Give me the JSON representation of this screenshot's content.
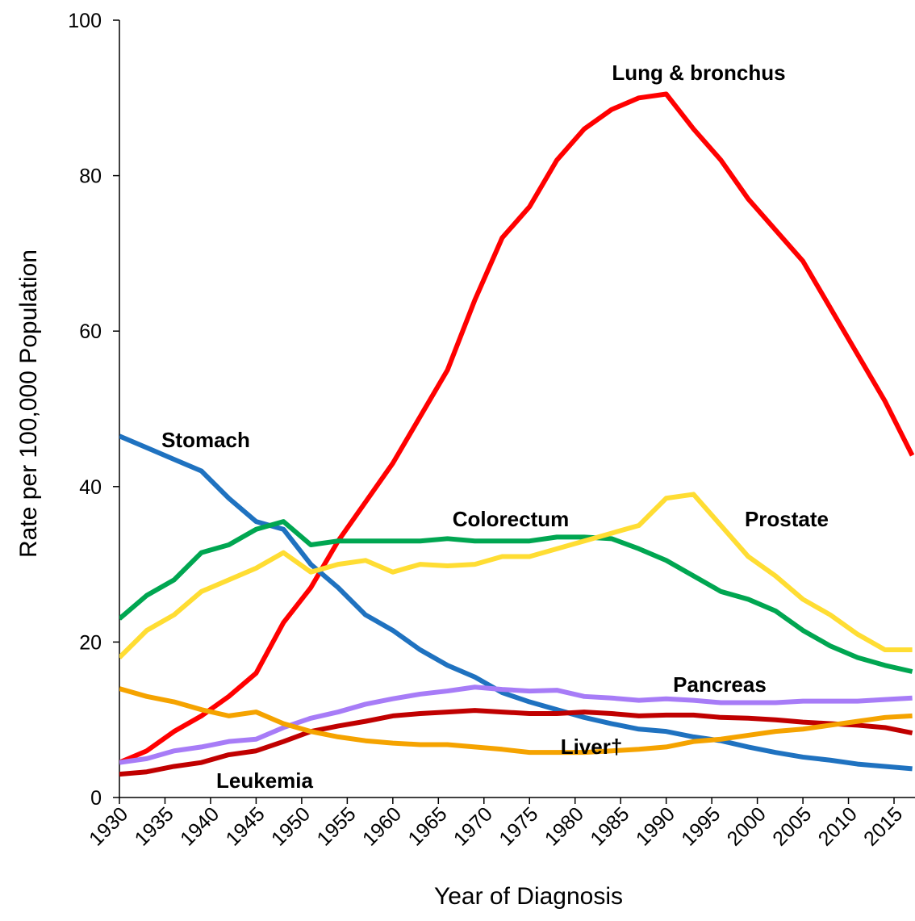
{
  "chart_data": {
    "type": "line",
    "xlabel": "Year of Diagnosis",
    "ylabel": "Rate per 100,000 Population",
    "x": [
      1930,
      1933,
      1936,
      1939,
      1942,
      1945,
      1948,
      1951,
      1954,
      1957,
      1960,
      1963,
      1966,
      1969,
      1972,
      1975,
      1978,
      1981,
      1984,
      1987,
      1990,
      1993,
      1996,
      1999,
      2002,
      2005,
      2008,
      2011,
      2014,
      2017
    ],
    "xlim": [
      1930,
      2017.3
    ],
    "xticks": [
      1930,
      1935,
      1940,
      1945,
      1950,
      1955,
      1960,
      1965,
      1970,
      1975,
      1980,
      1985,
      1990,
      1995,
      2000,
      2005,
      2010,
      2015
    ],
    "ylim": [
      0,
      100
    ],
    "yticks": [
      0,
      20,
      40,
      60,
      80,
      100
    ],
    "series": [
      {
        "name": "Lung & bronchus",
        "color": "#ff0000",
        "values": [
          4.5,
          6,
          8.5,
          10.5,
          13,
          16,
          22.5,
          27,
          33,
          38,
          43,
          49,
          55,
          64,
          72,
          76,
          82,
          86,
          88.5,
          90,
          90.5,
          86,
          82,
          77,
          73,
          69,
          63,
          57,
          51,
          44
        ]
      },
      {
        "name": "Stomach",
        "color": "#1f72c0",
        "values": [
          46.5,
          45,
          43.5,
          42,
          38.5,
          35.5,
          34.5,
          30,
          27,
          23.5,
          21.5,
          19,
          17,
          15.5,
          13.5,
          12.3,
          11.3,
          10.3,
          9.5,
          8.8,
          8.5,
          7.8,
          7.3,
          6.5,
          5.8,
          5.2,
          4.8,
          4.3,
          4,
          3.7
        ]
      },
      {
        "name": "Colorectum",
        "color": "#00a651",
        "values": [
          23,
          26,
          28,
          31.5,
          32.5,
          34.5,
          35.5,
          32.5,
          33,
          33,
          33,
          33,
          33.3,
          33,
          33,
          33,
          33.5,
          33.5,
          33.3,
          32,
          30.5,
          28.5,
          26.5,
          25.5,
          24,
          21.5,
          19.5,
          18,
          17,
          16.2
        ]
      },
      {
        "name": "Prostate",
        "color": "#ffdd33",
        "values": [
          18,
          21.5,
          23.5,
          26.5,
          28,
          29.5,
          31.5,
          29,
          30,
          30.5,
          29,
          30,
          29.8,
          30,
          31,
          31,
          32,
          33,
          34,
          35,
          38.5,
          39,
          35,
          31,
          28.5,
          25.5,
          23.5,
          21,
          19,
          19
        ]
      },
      {
        "name": "Pancreas",
        "color": "#a77cf7",
        "values": [
          4.5,
          5,
          6,
          6.5,
          7.2,
          7.5,
          9,
          10.2,
          11,
          12,
          12.7,
          13.3,
          13.7,
          14.2,
          13.9,
          13.7,
          13.8,
          13,
          12.8,
          12.5,
          12.7,
          12.5,
          12.2,
          12.2,
          12.2,
          12.4,
          12.4,
          12.4,
          12.6,
          12.8
        ]
      },
      {
        "name": "Leukemia",
        "color": "#c00000",
        "values": [
          3,
          3.3,
          4,
          4.5,
          5.5,
          6,
          7.2,
          8.5,
          9.2,
          9.8,
          10.5,
          10.8,
          11,
          11.2,
          11,
          10.8,
          10.8,
          11,
          10.8,
          10.5,
          10.6,
          10.6,
          10.3,
          10.2,
          10,
          9.7,
          9.5,
          9.3,
          9,
          8.3
        ]
      },
      {
        "name": "Liver†",
        "color": "#f5a300",
        "values": [
          14,
          13,
          12.3,
          11.3,
          10.5,
          11,
          9.5,
          8.5,
          7.8,
          7.3,
          7,
          6.8,
          6.8,
          6.5,
          6.2,
          5.8,
          5.8,
          5.8,
          6,
          6.2,
          6.5,
          7.2,
          7.5,
          8,
          8.5,
          8.8,
          9.3,
          9.8,
          10.3,
          10.5
        ]
      }
    ]
  }
}
